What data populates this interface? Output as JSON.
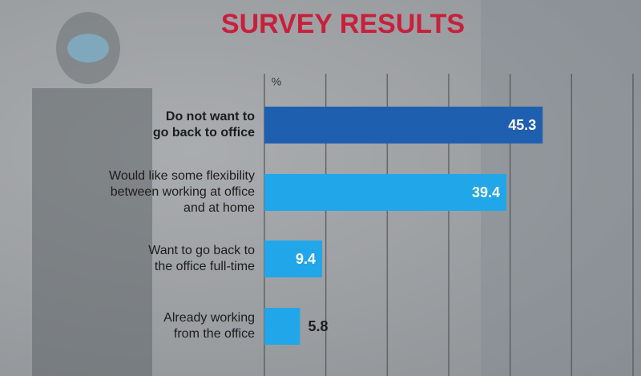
{
  "chart_data": {
    "type": "hbar",
    "title": "SURVEY RESULTS",
    "unit_label": "%",
    "categories": [
      "Do not want to\ngo back to office",
      "Would like some flexibility\nbetween working at office\nand at home",
      "Want to go back to\nthe office full-time",
      "Already working\nfrom the office"
    ],
    "values": [
      45.3,
      39.4,
      9.4,
      5.8
    ],
    "colors": [
      "#1f5fb0",
      "#22a6ea",
      "#22a6ea",
      "#22a6ea"
    ],
    "xlim": [
      0,
      60
    ],
    "xticks": [
      0,
      10,
      20,
      30,
      40,
      50,
      60
    ],
    "grid": true
  }
}
